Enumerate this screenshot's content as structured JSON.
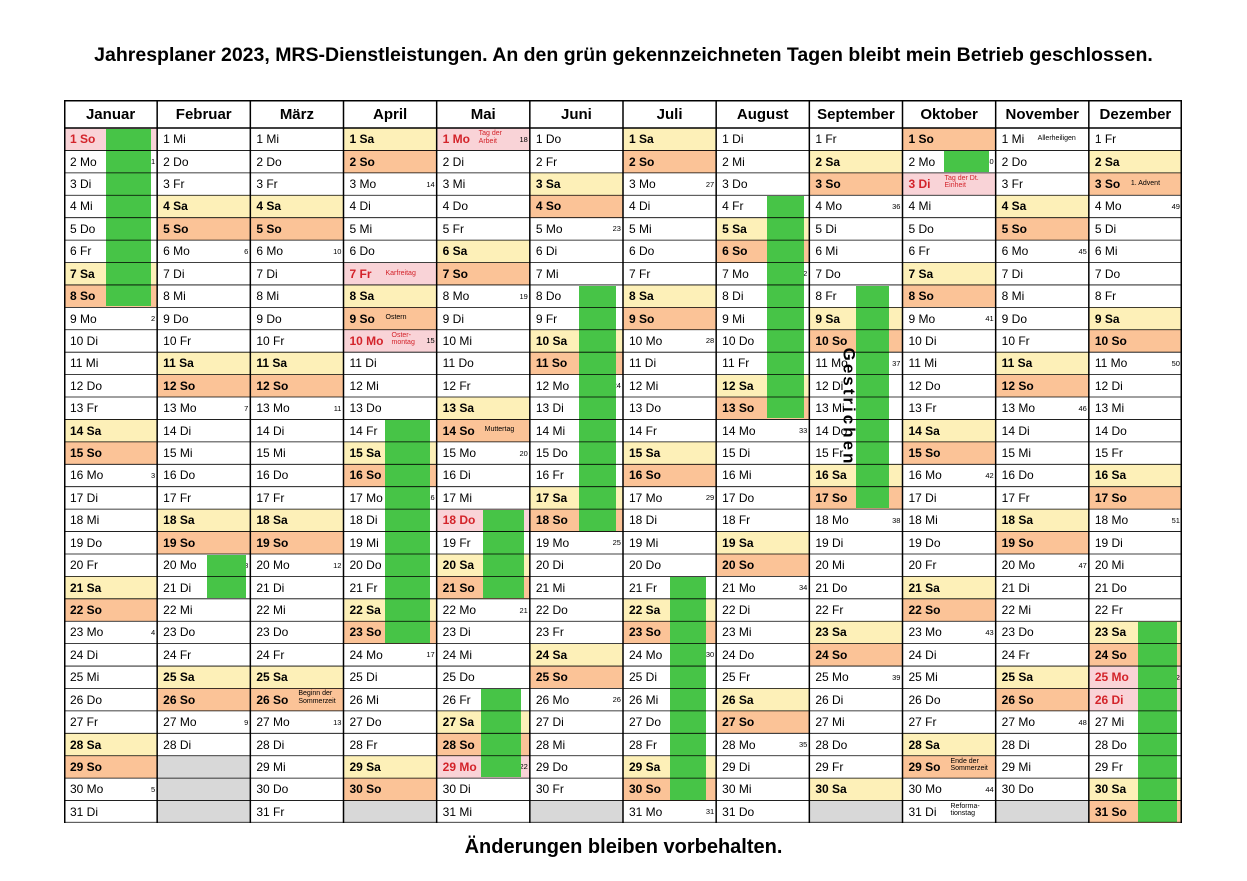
{
  "title": "Jahresplaner 2023, MRS-Dienstleistungen. An den grün gekennzeichneten Tagen bleibt mein Betrieb geschlossen.",
  "footer": "Änderungen bleiben vorbehalten.",
  "overlay_label": "Gestrichen",
  "colors": {
    "saturday": "#fdf0b8",
    "sunday": "#fbc397",
    "holiday": "#f9d3d7",
    "empty": "#d8d8d8",
    "closed": "#47c447",
    "holiday_text": "#d3232a"
  },
  "months": [
    {
      "name": "Januar",
      "days": 31,
      "start": 6
    },
    {
      "name": "Februar",
      "days": 28,
      "start": 2
    },
    {
      "name": "März",
      "days": 31,
      "start": 2
    },
    {
      "name": "April",
      "days": 30,
      "start": 5
    },
    {
      "name": "Mai",
      "days": 31,
      "start": 0
    },
    {
      "name": "Juni",
      "days": 30,
      "start": 3
    },
    {
      "name": "Juli",
      "days": 31,
      "start": 5
    },
    {
      "name": "August",
      "days": 31,
      "start": 1
    },
    {
      "name": "September",
      "days": 30,
      "start": 4
    },
    {
      "name": "Oktober",
      "days": 31,
      "start": 6
    },
    {
      "name": "November",
      "days": 30,
      "start": 2
    },
    {
      "name": "Dezember",
      "days": 31,
      "start": 4
    }
  ],
  "weekday_abbr": [
    "Mo",
    "Di",
    "Mi",
    "Do",
    "Fr",
    "Sa",
    "So"
  ],
  "holidays": {
    "0": {
      "1": ""
    },
    "3": {
      "7": "Karfreitag",
      "10": "Oster-\nmontag"
    },
    "4": {
      "1": "Tag der\nArbeit",
      "18": "",
      "29": ""
    },
    "9": {
      "3": "Tag der Dt.\nEinheit"
    },
    "11": {
      "25": "",
      "26": ""
    }
  },
  "notes": {
    "2": {
      "26": "Beginn der\nSommerzeit"
    },
    "3": {
      "9": "Ostern"
    },
    "4": {
      "14": "Muttertag"
    },
    "9": {
      "29": "Ende der\nSommerzeit",
      "31": "Reforma-\ntionstag"
    },
    "10": {
      "1": "Allerheiligen"
    },
    "11": {
      "3": "1. Advent"
    }
  },
  "closed_periods": [
    {
      "month": 0,
      "from": 1,
      "to": 8,
      "col_offset": 0.45,
      "col_width": 0.48
    },
    {
      "month": 1,
      "from": 20,
      "to": 21,
      "col_offset": 0.53,
      "col_width": 0.42
    },
    {
      "month": 1,
      "from": 21,
      "to": 21,
      "col_offset": 0.53,
      "col_width": 0.42
    },
    {
      "month": 3,
      "from": 14,
      "to": 23,
      "col_offset": 0.45,
      "col_width": 0.48
    },
    {
      "month": 4,
      "from": 18,
      "to": 21,
      "col_offset": 0.5,
      "col_width": 0.44
    },
    {
      "month": 4,
      "from": 26,
      "to": 29,
      "col_offset": 0.48,
      "col_width": 0.42
    },
    {
      "month": 5,
      "from": 8,
      "to": 18,
      "col_offset": 0.53,
      "col_width": 0.39
    },
    {
      "month": 6,
      "from": 21,
      "to": 30,
      "col_offset": 0.5,
      "col_width": 0.39
    },
    {
      "month": 7,
      "from": 4,
      "to": 13,
      "col_offset": 0.55,
      "col_width": 0.39
    },
    {
      "month": 8,
      "from": 8,
      "to": 17,
      "col_offset": 0.5,
      "col_width": 0.36
    },
    {
      "month": 9,
      "from": 2,
      "to": 2,
      "col_offset": 0.45,
      "col_width": 0.48
    },
    {
      "month": 11,
      "from": 23,
      "to": 31,
      "col_offset": 0.53,
      "col_width": 0.42
    }
  ]
}
